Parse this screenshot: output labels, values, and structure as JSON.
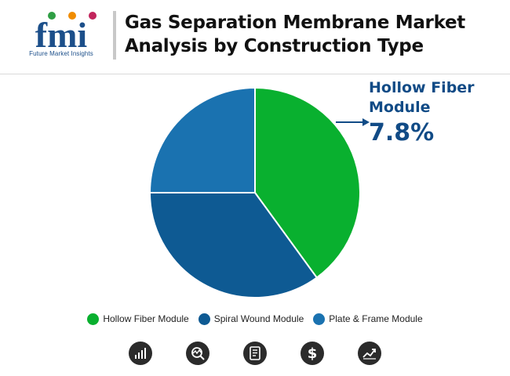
{
  "header": {
    "logo_text": "fmi",
    "logo_caption": "Future Market Insights",
    "title_line1": "Gas Separation Membrane Market",
    "title_line2": "Analysis by Construction Type"
  },
  "callout": {
    "label_line1": "Hollow Fiber",
    "label_line2": "Module",
    "value": "7.8%"
  },
  "chart_data": {
    "type": "pie",
    "start": "12 o'clock, clockwise",
    "slices": [
      {
        "label": "Hollow Fiber Module",
        "value": 40,
        "color": "#09b02f"
      },
      {
        "label": "Spiral Wound Module",
        "value": 35,
        "color": "#0e5a93"
      },
      {
        "label": "Plate & Frame Module",
        "value": 25,
        "color": "#1a72b0"
      }
    ],
    "legend_position": "bottom",
    "highlight": {
      "label": "Hollow Fiber Module",
      "display_value": "7.8%"
    }
  },
  "legend": [
    {
      "label": "Hollow Fiber Module",
      "color": "#09b02f"
    },
    {
      "label": "Spiral Wound Module",
      "color": "#0e5a93"
    },
    {
      "label": "Plate & Frame Module",
      "color": "#1a72b0"
    }
  ],
  "footer_icons": [
    "bar-chart-icon",
    "search-analysis-icon",
    "report-document-icon",
    "dollar-icon",
    "trend-line-icon"
  ],
  "colors": {
    "accent": "#114b86",
    "icon_bg": "#2b2b2b"
  }
}
